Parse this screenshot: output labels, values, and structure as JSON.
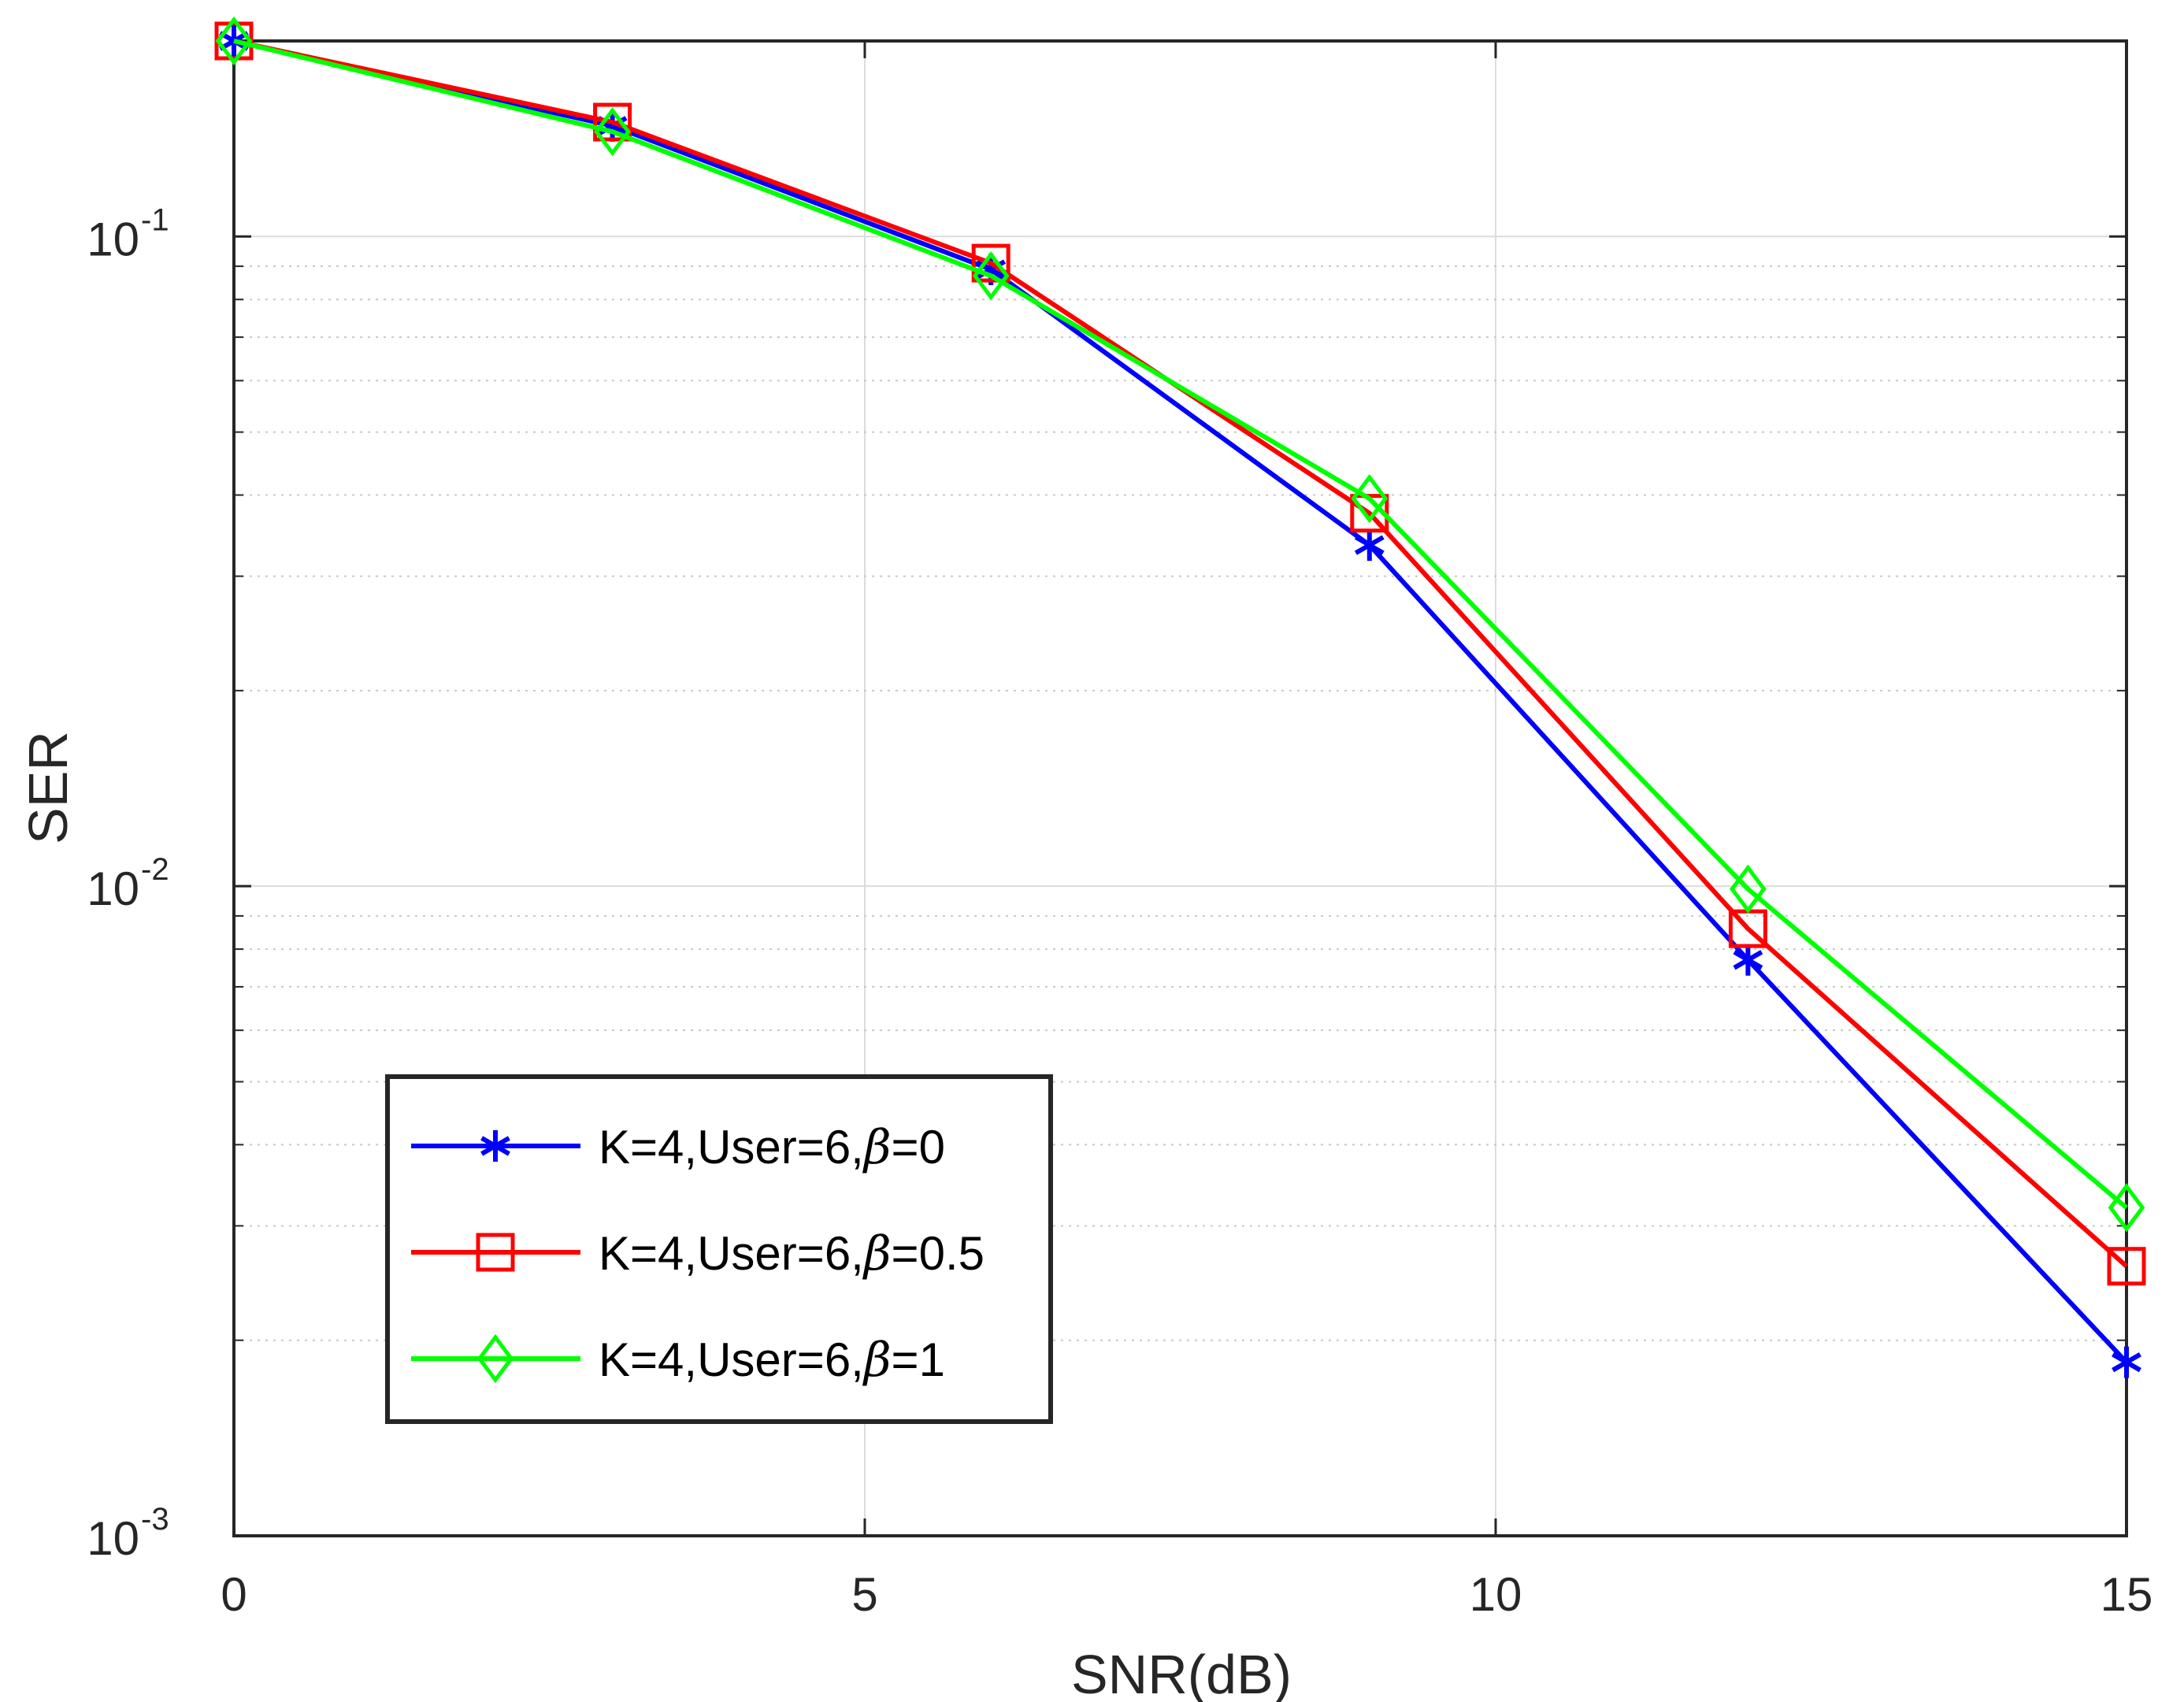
{
  "chart_data": {
    "type": "line",
    "title": "",
    "xlabel": "SNR(dB)",
    "ylabel": "SER",
    "xlim": [
      0,
      15
    ],
    "ylim": [
      0.001,
      0.2
    ],
    "yscale": "log",
    "grid": true,
    "x_ticks": [
      {
        "value": 0,
        "label": "0"
      },
      {
        "value": 5,
        "label": "5"
      },
      {
        "value": 10,
        "label": "10"
      },
      {
        "value": 15,
        "label": "15"
      }
    ],
    "y_ticks": [
      {
        "value": 0.1,
        "base": "10",
        "exp": "-1"
      },
      {
        "value": 0.01,
        "base": "10",
        "exp": "-2"
      },
      {
        "value": 0.001,
        "base": "10",
        "exp": "-3"
      }
    ],
    "x": [
      0,
      3,
      6,
      9,
      12,
      15
    ],
    "legend_position": "lower-left",
    "series": [
      {
        "name": "K=4,User=6,β=0",
        "label_prefix": "K=4,User=6,",
        "label_symbol": "β",
        "label_suffix": "=0",
        "color": "#0000ff",
        "marker": "asterisk",
        "values": [
          0.2,
          0.148,
          0.089,
          0.0335,
          0.0077,
          0.00185
        ]
      },
      {
        "name": "K=4,User=6,β=0.5",
        "label_prefix": "K=4,User=6,",
        "label_symbol": "β",
        "label_suffix": "=0.5",
        "color": "#ff0000",
        "marker": "square",
        "values": [
          0.2,
          0.15,
          0.091,
          0.0375,
          0.0086,
          0.0026
        ]
      },
      {
        "name": "K=4,User=6,β=1",
        "label_prefix": "K=4,User=6,",
        "label_symbol": "β",
        "label_suffix": "=1",
        "color": "#00ff00",
        "marker": "diamond",
        "values": [
          0.2,
          0.145,
          0.087,
          0.0395,
          0.0099,
          0.0032
        ]
      }
    ]
  }
}
